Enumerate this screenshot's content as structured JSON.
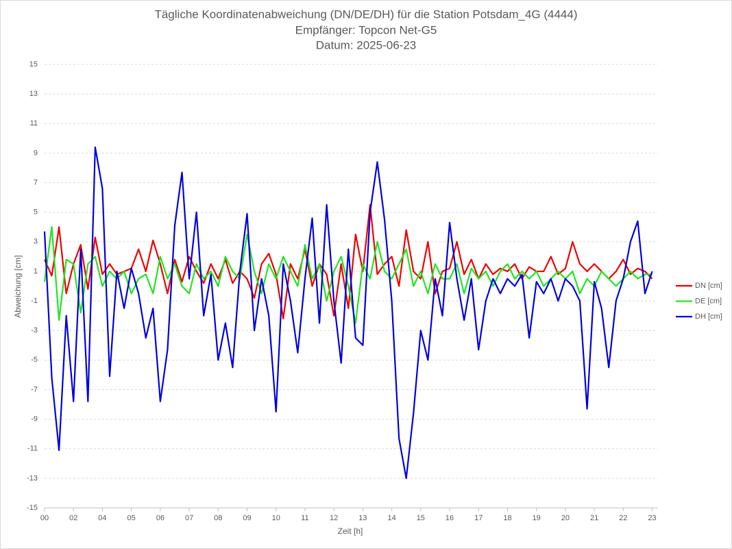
{
  "chart_data": {
    "type": "line",
    "title": "Tägliche Koordinatenabweichung (DN/DE/DH) für die Station Potsdam_4G (4444)",
    "subtitle": [
      "Empfänger: Topcon Net-G5",
      "Datum: 2025-06-23"
    ],
    "x_label": "Zeit [h]",
    "y_label": "Abweichung [cm]",
    "xlim": [
      0,
      21.2
    ],
    "xticks": [
      {
        "value": 0,
        "label": "00"
      },
      {
        "value": 1,
        "label": "02"
      },
      {
        "value": 2,
        "label": "04"
      },
      {
        "value": 3,
        "label": "05"
      },
      {
        "value": 4,
        "label": "06"
      },
      {
        "value": 5,
        "label": "07"
      },
      {
        "value": 6,
        "label": "08"
      },
      {
        "value": 7,
        "label": "09"
      },
      {
        "value": 8,
        "label": "10"
      },
      {
        "value": 9,
        "label": "11"
      },
      {
        "value": 10,
        "label": "12"
      },
      {
        "value": 11,
        "label": "13"
      },
      {
        "value": 12,
        "label": "14"
      },
      {
        "value": 13,
        "label": "15"
      },
      {
        "value": 14,
        "label": "16"
      },
      {
        "value": 15,
        "label": "17"
      },
      {
        "value": 16,
        "label": "18"
      },
      {
        "value": 17,
        "label": "19"
      },
      {
        "value": 18,
        "label": "20"
      },
      {
        "value": 19,
        "label": "21"
      },
      {
        "value": 20,
        "label": "22"
      },
      {
        "value": 21,
        "label": "23"
      }
    ],
    "ylim": [
      -15,
      15
    ],
    "yticks": [
      -15,
      -13,
      -11,
      -9,
      -7,
      -5,
      -3,
      -1,
      1,
      3,
      5,
      7,
      9,
      11,
      13,
      15
    ],
    "grid": true,
    "legend": "right",
    "x": [
      0,
      0.25,
      0.5,
      0.75,
      1,
      1.25,
      1.5,
      1.75,
      2,
      2.25,
      2.5,
      2.75,
      3,
      3.25,
      3.5,
      3.75,
      4,
      4.25,
      4.5,
      4.75,
      5,
      5.25,
      5.5,
      5.75,
      6,
      6.25,
      6.5,
      6.75,
      7,
      7.25,
      7.5,
      7.75,
      8,
      8.25,
      8.5,
      8.75,
      9,
      9.25,
      9.5,
      9.75,
      10,
      10.25,
      10.5,
      10.75,
      11,
      11.25,
      11.5,
      11.75,
      12,
      12.25,
      12.5,
      12.75,
      13,
      13.25,
      13.5,
      13.75,
      14,
      14.25,
      14.5,
      14.75,
      15,
      15.25,
      15.5,
      15.75,
      16,
      16.25,
      16.5,
      16.75,
      17,
      17.25,
      17.5,
      17.75,
      18,
      18.25,
      18.5,
      18.75,
      19,
      19.25,
      19.5,
      19.75,
      20,
      20.25,
      20.5,
      20.75,
      21
    ],
    "series": [
      {
        "name": "DN [cm]",
        "color": "#ee0000",
        "values": [
          1.8,
          0.7,
          4.0,
          -0.5,
          1.5,
          2.8,
          -0.2,
          3.3,
          0.8,
          1.5,
          0.8,
          1.0,
          1.2,
          2.5,
          1.0,
          3.1,
          1.5,
          -0.5,
          1.8,
          0.3,
          2.0,
          1.0,
          0.2,
          1.5,
          0.5,
          1.8,
          0.2,
          1.0,
          0.5,
          -0.8,
          1.5,
          2.2,
          0.8,
          -2.2,
          1.5,
          0.5,
          2.5,
          0.0,
          1.5,
          0.8,
          -2.0,
          1.5,
          -1.5,
          3.5,
          1.0,
          5.5,
          0.8,
          1.5,
          2.0,
          0.0,
          3.8,
          1.0,
          0.5,
          3.0,
          -0.5,
          1.0,
          1.2,
          3.0,
          0.8,
          1.8,
          0.5,
          1.5,
          0.8,
          1.2,
          1.0,
          1.5,
          0.5,
          1.3,
          1.0,
          1.0,
          2.0,
          0.8,
          1.2,
          3.0,
          1.5,
          1.0,
          1.5,
          1.0,
          0.5,
          1.0,
          1.8,
          0.8,
          1.2,
          1.0,
          0.5
        ]
      },
      {
        "name": "DE [cm]",
        "color": "#22e322",
        "values": [
          0.3,
          4.0,
          -2.3,
          1.8,
          1.5,
          -1.8,
          1.5,
          2.0,
          0.0,
          1.0,
          0.5,
          1.0,
          -0.5,
          0.5,
          0.8,
          -0.5,
          2.0,
          0.5,
          1.5,
          0.0,
          -0.5,
          1.5,
          0.5,
          1.0,
          0.0,
          2.0,
          1.0,
          0.5,
          3.5,
          1.0,
          -0.5,
          1.5,
          0.5,
          2.0,
          1.0,
          0.0,
          2.8,
          0.5,
          1.5,
          -1.0,
          1.0,
          2.0,
          0.0,
          -2.5,
          1.5,
          0.5,
          3.0,
          1.0,
          0.5,
          1.5,
          2.5,
          0.0,
          1.0,
          -0.5,
          1.5,
          0.5,
          0.5,
          1.5,
          -0.5,
          1.2,
          0.5,
          1.0,
          0.0,
          1.0,
          1.5,
          0.5,
          1.0,
          0.5,
          1.0,
          0.0,
          0.5,
          1.0,
          0.5,
          1.0,
          -0.5,
          0.5,
          0.0,
          1.0,
          0.5,
          0.0,
          0.5,
          1.0,
          0.5,
          0.8,
          0.8
        ]
      },
      {
        "name": "DH [cm]",
        "color": "#0000dd",
        "values": [
          3.7,
          -6.2,
          -11.1,
          -2.0,
          -7.8,
          2.5,
          -7.8,
          9.4,
          6.6,
          -6.1,
          1.0,
          -1.5,
          1.2,
          -0.5,
          -3.5,
          -1.5,
          -7.8,
          -4.3,
          4.1,
          7.7,
          0.5,
          5.0,
          -2.0,
          0.8,
          -5.0,
          -2.5,
          -5.5,
          1.0,
          4.9,
          -3.0,
          0.5,
          -2.0,
          -8.5,
          1.5,
          -1.0,
          -4.5,
          0.5,
          4.6,
          -2.5,
          5.5,
          -1.0,
          -5.2,
          2.5,
          -3.5,
          -4.0,
          5.0,
          8.4,
          4.5,
          -1.0,
          -10.3,
          -13.0,
          -8.6,
          -3.0,
          -5.0,
          0.5,
          -2.0,
          4.3,
          0.5,
          -2.3,
          0.5,
          -4.3,
          -1.0,
          0.5,
          -0.5,
          0.5,
          0.0,
          0.8,
          -3.5,
          0.3,
          -0.5,
          0.5,
          -1.0,
          0.5,
          0.0,
          -1.0,
          -8.3,
          0.3,
          -1.5,
          -5.5,
          -1.0,
          0.5,
          3.0,
          4.4,
          -0.5,
          1.0
        ]
      }
    ]
  }
}
